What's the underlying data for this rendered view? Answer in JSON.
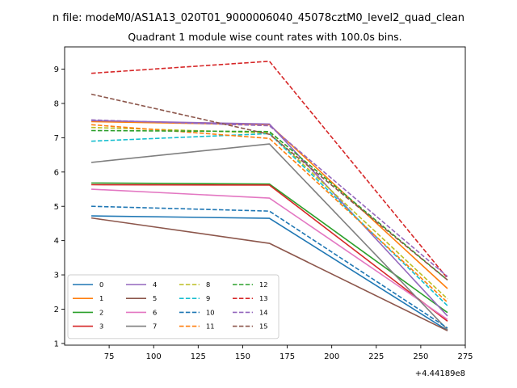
{
  "figure": {
    "suptitle": "n file: modeM0/AS1A13_020T01_9000006040_45078cztM0_level2_quad_clean",
    "title": "Quadrant 1 module wise count rates with 100.0s bins."
  },
  "chart_data": {
    "type": "line",
    "x": [
      65,
      165,
      265
    ],
    "x_offset_label": "+4.44189e8",
    "xlim": [
      50,
      275
    ],
    "ylim": [
      0.95,
      9.65
    ],
    "xticks": [
      75,
      100,
      125,
      150,
      175,
      200,
      225,
      250,
      275
    ],
    "yticks": [
      1,
      2,
      3,
      4,
      5,
      6,
      7,
      8,
      9
    ],
    "legend_position": "lower-left",
    "legend_columns": 4,
    "grid": false,
    "series": [
      {
        "name": "0",
        "values": [
          4.72,
          4.65,
          1.38
        ],
        "color": "#1f77b4",
        "dash": "solid"
      },
      {
        "name": "1",
        "values": [
          7.47,
          7.38,
          2.6
        ],
        "color": "#ff7f0e",
        "dash": "solid"
      },
      {
        "name": "2",
        "values": [
          5.68,
          5.65,
          1.9
        ],
        "color": "#2ca02c",
        "dash": "solid"
      },
      {
        "name": "3",
        "values": [
          5.63,
          5.62,
          1.65
        ],
        "color": "#d62728",
        "dash": "solid"
      },
      {
        "name": "4",
        "values": [
          7.5,
          7.4,
          1.8
        ],
        "color": "#9467bd",
        "dash": "solid"
      },
      {
        "name": "5",
        "values": [
          4.66,
          3.92,
          1.37
        ],
        "color": "#8c564b",
        "dash": "solid"
      },
      {
        "name": "6",
        "values": [
          5.5,
          5.24,
          1.7
        ],
        "color": "#e377c2",
        "dash": "solid"
      },
      {
        "name": "7",
        "values": [
          6.28,
          6.82,
          1.4
        ],
        "color": "#7f7f7f",
        "dash": "solid"
      },
      {
        "name": "8",
        "values": [
          7.3,
          7.14,
          2.3
        ],
        "color": "#bcbd22",
        "dash": "dashed"
      },
      {
        "name": "9",
        "values": [
          6.9,
          7.12,
          2.1
        ],
        "color": "#17becf",
        "dash": "dashed"
      },
      {
        "name": "10",
        "values": [
          5.0,
          4.86,
          1.45
        ],
        "color": "#1f77b4",
        "dash": "dashed"
      },
      {
        "name": "11",
        "values": [
          7.38,
          6.98,
          2.2
        ],
        "color": "#ff7f0e",
        "dash": "dashed"
      },
      {
        "name": "12",
        "values": [
          7.21,
          7.18,
          2.85
        ],
        "color": "#2ca02c",
        "dash": "dashed"
      },
      {
        "name": "13",
        "values": [
          8.88,
          9.23,
          2.9
        ],
        "color": "#d62728",
        "dash": "dashed"
      },
      {
        "name": "14",
        "values": [
          7.52,
          7.35,
          2.95
        ],
        "color": "#9467bd",
        "dash": "dashed"
      },
      {
        "name": "15",
        "values": [
          8.27,
          7.1,
          2.85
        ],
        "color": "#8c564b",
        "dash": "dashed"
      }
    ]
  }
}
